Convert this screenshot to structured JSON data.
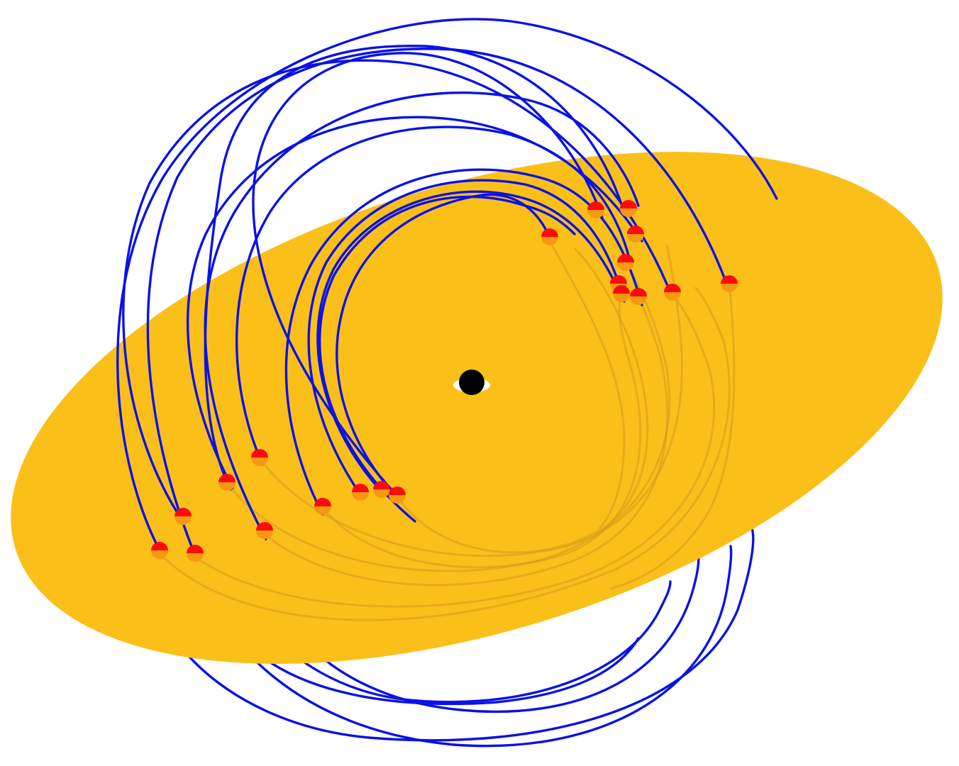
{
  "colors": {
    "background": "#ffffff",
    "disk": "#fbbf1a",
    "orbit_front": "#0a12e6",
    "orbit_behind": "#d49a1c",
    "crossing_marker_top": "#ff0a0a",
    "crossing_marker_bottom": "#f59a10",
    "black_hole": "#000000",
    "black_hole_ring": "#ffffff"
  },
  "diagram": {
    "description_label": "",
    "central_object": "black-hole",
    "disk": "accretion-disk",
    "orbits": [
      {
        "name": "orbit-1"
      },
      {
        "name": "orbit-2"
      },
      {
        "name": "orbit-3"
      },
      {
        "name": "orbit-4"
      },
      {
        "name": "orbit-5"
      },
      {
        "name": "orbit-6"
      },
      {
        "name": "orbit-7"
      },
      {
        "name": "orbit-8"
      },
      {
        "name": "orbit-9"
      },
      {
        "name": "orbit-10"
      },
      {
        "name": "orbit-11"
      },
      {
        "name": "orbit-12"
      }
    ]
  }
}
